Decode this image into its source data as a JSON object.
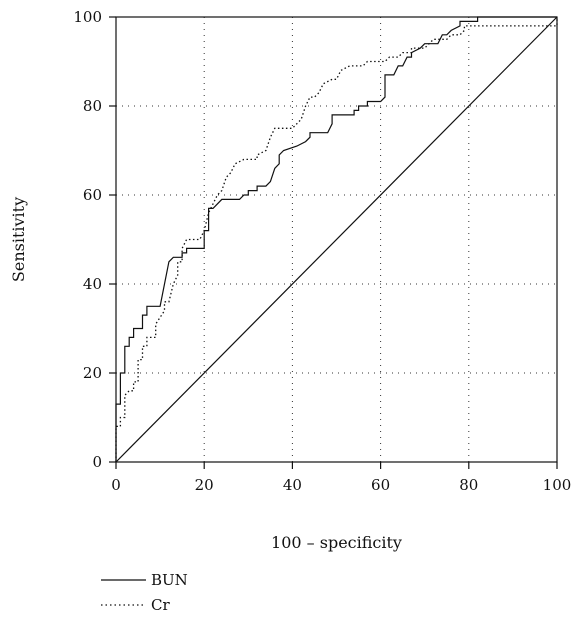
{
  "chart_data": {
    "type": "line",
    "xlabel": "100 – specificity",
    "ylabel": "Sensitivity",
    "xlim": [
      0,
      100
    ],
    "ylim": [
      0,
      100
    ],
    "x_ticks": [
      "0",
      "20",
      "40",
      "60",
      "80",
      "100"
    ],
    "y_ticks": [
      "0",
      "20",
      "40",
      "60",
      "80",
      "100"
    ],
    "grid": true,
    "legend": "bottom-left, below plot",
    "series": [
      {
        "name": "BUN",
        "style": "solid",
        "color": "#111111",
        "points": [
          [
            0,
            0
          ],
          [
            0,
            13
          ],
          [
            1,
            13
          ],
          [
            1,
            14
          ],
          [
            1,
            20
          ],
          [
            2,
            20
          ],
          [
            2,
            26
          ],
          [
            3,
            26
          ],
          [
            3,
            28
          ],
          [
            4,
            28
          ],
          [
            4,
            30
          ],
          [
            6,
            30
          ],
          [
            6,
            33
          ],
          [
            7,
            33
          ],
          [
            7,
            35
          ],
          [
            10,
            35
          ],
          [
            11,
            40
          ],
          [
            12,
            45
          ],
          [
            13,
            46
          ],
          [
            15,
            46
          ],
          [
            15,
            47
          ],
          [
            16,
            47
          ],
          [
            16,
            48
          ],
          [
            20,
            48
          ],
          [
            20,
            52
          ],
          [
            21,
            52
          ],
          [
            21,
            57
          ],
          [
            22,
            57
          ],
          [
            23,
            58
          ],
          [
            24,
            59
          ],
          [
            28,
            59
          ],
          [
            29,
            60
          ],
          [
            30,
            60
          ],
          [
            30,
            61
          ],
          [
            32,
            61
          ],
          [
            32,
            62
          ],
          [
            34,
            62
          ],
          [
            35,
            63
          ],
          [
            36,
            66
          ],
          [
            37,
            67
          ],
          [
            37,
            69
          ],
          [
            38,
            70
          ],
          [
            41,
            71
          ],
          [
            43,
            72
          ],
          [
            44,
            73
          ],
          [
            44,
            74
          ],
          [
            48,
            74
          ],
          [
            49,
            76
          ],
          [
            49,
            78
          ],
          [
            54,
            78
          ],
          [
            54,
            79
          ],
          [
            55,
            79
          ],
          [
            55,
            80
          ],
          [
            57,
            80
          ],
          [
            57,
            81
          ],
          [
            60,
            81
          ],
          [
            61,
            82
          ],
          [
            61,
            87
          ],
          [
            63,
            87
          ],
          [
            64,
            89
          ],
          [
            65,
            89
          ],
          [
            66,
            91
          ],
          [
            67,
            91
          ],
          [
            67,
            92
          ],
          [
            69,
            93
          ],
          [
            70,
            94
          ],
          [
            73,
            94
          ],
          [
            74,
            96
          ],
          [
            75,
            96
          ],
          [
            76,
            97
          ],
          [
            78,
            98
          ],
          [
            78,
            99
          ],
          [
            82,
            99
          ],
          [
            82,
            100
          ],
          [
            100,
            100
          ]
        ]
      },
      {
        "name": "Cr",
        "style": "dotted",
        "color": "#111111",
        "points": [
          [
            0,
            0
          ],
          [
            0,
            8
          ],
          [
            1,
            8
          ],
          [
            1,
            10
          ],
          [
            2,
            10
          ],
          [
            2,
            15
          ],
          [
            3,
            16
          ],
          [
            4,
            16
          ],
          [
            4,
            18
          ],
          [
            5,
            18
          ],
          [
            5,
            23
          ],
          [
            6,
            23
          ],
          [
            6,
            26
          ],
          [
            7,
            26
          ],
          [
            7,
            28
          ],
          [
            9,
            28
          ],
          [
            9,
            31
          ],
          [
            11,
            34
          ],
          [
            11,
            36
          ],
          [
            12,
            36
          ],
          [
            13,
            40
          ],
          [
            14,
            42
          ],
          [
            14,
            45
          ],
          [
            15,
            45
          ],
          [
            15,
            48
          ],
          [
            16,
            50
          ],
          [
            19,
            50
          ],
          [
            20,
            52
          ],
          [
            21,
            56
          ],
          [
            22,
            58
          ],
          [
            23,
            60
          ],
          [
            24,
            61
          ],
          [
            25,
            64
          ],
          [
            26,
            65
          ],
          [
            27,
            67
          ],
          [
            29,
            68
          ],
          [
            32,
            68
          ],
          [
            32,
            69
          ],
          [
            34,
            70
          ],
          [
            35,
            73
          ],
          [
            36,
            75
          ],
          [
            40,
            75
          ],
          [
            41,
            76
          ],
          [
            42,
            77
          ],
          [
            43,
            80
          ],
          [
            44,
            82
          ],
          [
            45,
            82
          ],
          [
            46,
            83
          ],
          [
            47,
            85
          ],
          [
            49,
            86
          ],
          [
            50,
            86
          ],
          [
            51,
            88
          ],
          [
            53,
            89
          ],
          [
            56,
            89
          ],
          [
            57,
            90
          ],
          [
            61,
            90
          ],
          [
            62,
            91
          ],
          [
            64,
            91
          ],
          [
            65,
            92
          ],
          [
            67,
            92
          ],
          [
            67,
            93
          ],
          [
            70,
            93
          ],
          [
            71,
            94
          ],
          [
            72,
            95
          ],
          [
            75,
            95
          ],
          [
            76,
            96
          ],
          [
            78,
            96
          ],
          [
            79,
            97
          ],
          [
            79,
            98
          ],
          [
            100,
            98
          ],
          [
            100,
            100
          ]
        ]
      },
      {
        "name": "",
        "style": "reference",
        "color": "#111111",
        "points": [
          [
            0,
            0
          ],
          [
            100,
            100
          ]
        ]
      }
    ]
  }
}
